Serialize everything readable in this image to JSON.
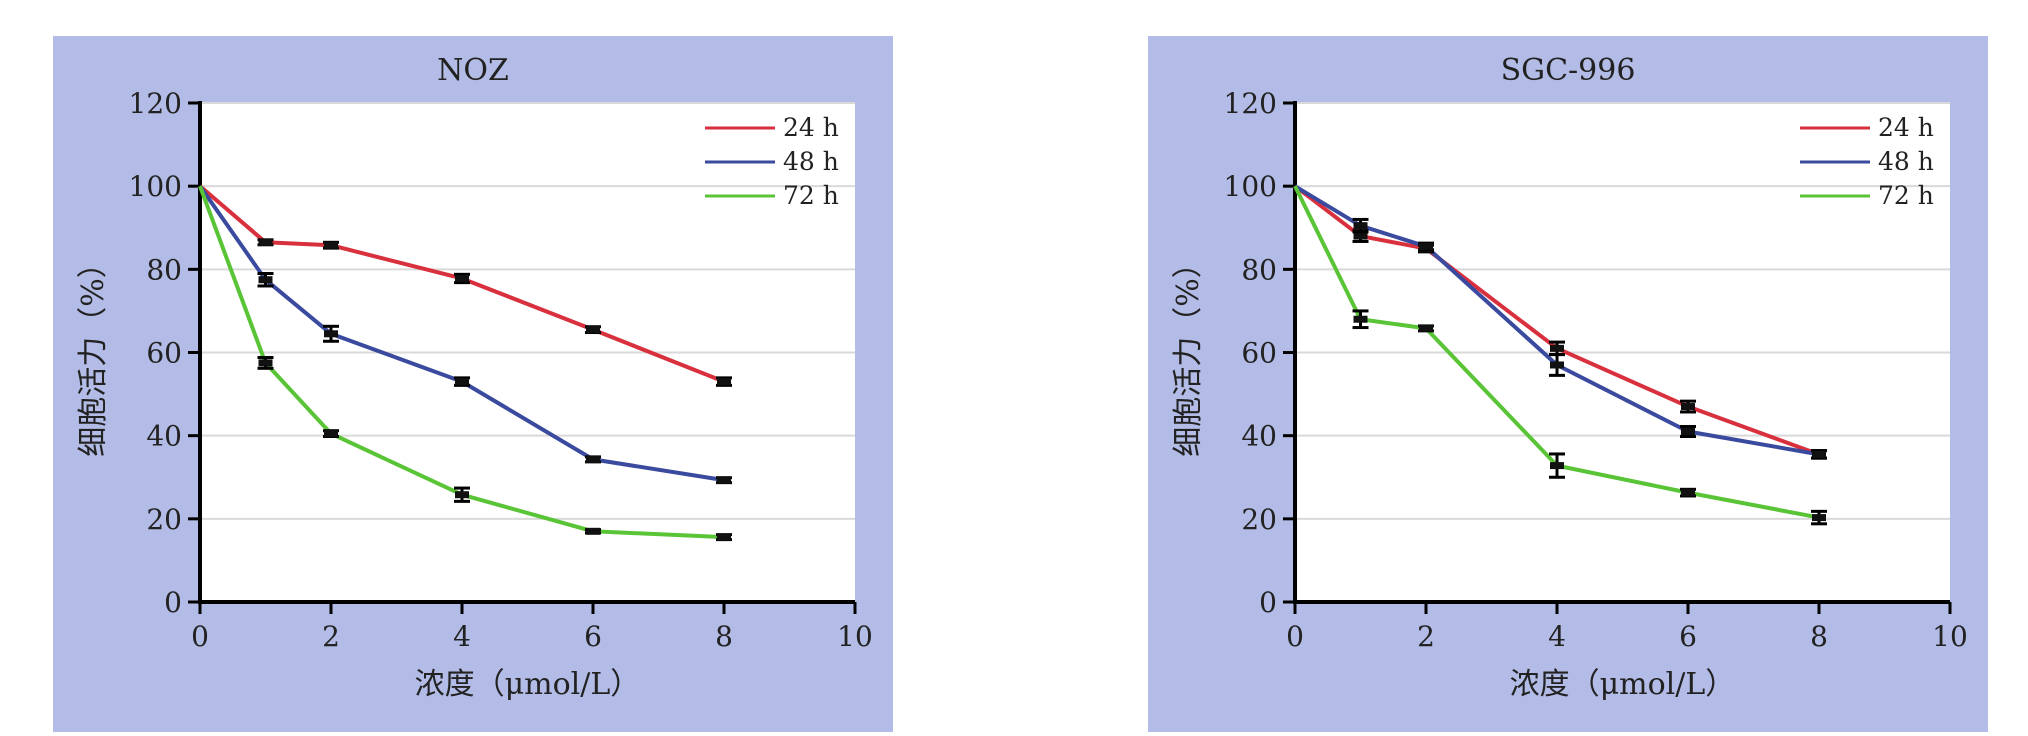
{
  "chart_data": [
    {
      "type": "line",
      "title": "NOZ",
      "xlabel": "浓度（μmol/L）",
      "ylabel": "细胞活力（%）",
      "xlim": [
        0,
        10
      ],
      "ylim": [
        0,
        120
      ],
      "xticks": [
        0,
        2,
        4,
        6,
        8,
        10
      ],
      "yticks": [
        0,
        20,
        40,
        60,
        80,
        100,
        120
      ],
      "grid": "horizontal",
      "legend_position": "top-right",
      "x": [
        0,
        1,
        2,
        4,
        6,
        8
      ],
      "series": [
        {
          "name": "24 h",
          "color": "#d9303e",
          "values": [
            100,
            86.5,
            85.8,
            77.8,
            65.5,
            53.0
          ],
          "errors": [
            0,
            0.6,
            0.7,
            1.0,
            0.7,
            0.9
          ]
        },
        {
          "name": "48 h",
          "color": "#3a4a9e",
          "values": [
            100,
            77.5,
            64.5,
            53.0,
            34.3,
            29.3
          ],
          "errors": [
            0,
            1.5,
            1.8,
            0.9,
            0.6,
            0.6
          ]
        },
        {
          "name": "72 h",
          "color": "#59c436",
          "values": [
            100,
            57.5,
            40.5,
            25.8,
            17.0,
            15.6
          ],
          "errors": [
            0,
            1.3,
            0.7,
            1.6,
            0.4,
            0.6
          ]
        }
      ]
    },
    {
      "type": "line",
      "title": "SGC-996",
      "xlabel": "浓度（μmol/L）",
      "ylabel": "细胞活力（%）",
      "xlim": [
        0,
        10
      ],
      "ylim": [
        0,
        120
      ],
      "xticks": [
        0,
        2,
        4,
        6,
        8,
        10
      ],
      "yticks": [
        0,
        20,
        40,
        60,
        80,
        100,
        120
      ],
      "grid": "horizontal",
      "legend_position": "top-right",
      "x": [
        0,
        1,
        2,
        4,
        6,
        8
      ],
      "series": [
        {
          "name": "24 h",
          "color": "#d9303e",
          "values": [
            100,
            88.0,
            85.0,
            61.0,
            47.0,
            35.5
          ],
          "errors": [
            0,
            1.3,
            0.8,
            1.5,
            1.3,
            0.9
          ]
        },
        {
          "name": "48 h",
          "color": "#3a4a9e",
          "values": [
            100,
            90.5,
            85.5,
            57.0,
            41.0,
            35.5
          ],
          "errors": [
            0,
            1.5,
            0.8,
            2.5,
            1.2,
            0.9
          ]
        },
        {
          "name": "72 h",
          "color": "#59c436",
          "values": [
            100,
            68.0,
            65.8,
            32.8,
            26.3,
            20.3
          ],
          "errors": [
            0,
            2.0,
            0.6,
            2.8,
            0.8,
            1.5
          ]
        }
      ]
    }
  ]
}
